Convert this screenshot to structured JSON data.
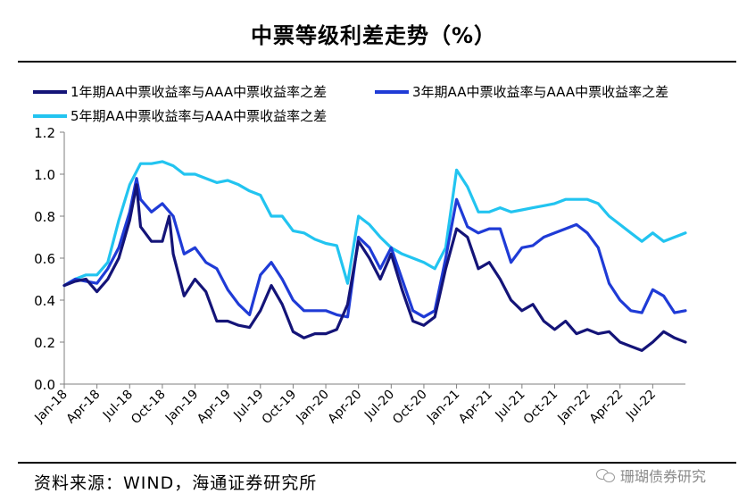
{
  "header": {
    "title": "中票等级利差走势（%）"
  },
  "footer": {
    "source": "资料来源：WIND，海通证券研究所",
    "watermark": "珊瑚债券研究"
  },
  "colors": {
    "s1": "#141478",
    "s2": "#1f3bd6",
    "s3": "#22c4f0",
    "axis": "#7f7f7f"
  },
  "chart_data": {
    "type": "line",
    "title": "中票等级利差走势（%）",
    "xlabel": "",
    "ylabel": "",
    "ylim": [
      0,
      1.2
    ],
    "yticks": [
      "0.0",
      "0.2",
      "0.4",
      "0.6",
      "0.8",
      "1.0",
      "1.2"
    ],
    "xticks": [
      "Jan-18",
      "Apr-18",
      "Jul-18",
      "Oct-18",
      "Jan-19",
      "Apr-19",
      "Jul-19",
      "Oct-19",
      "Jan-20",
      "Apr-20",
      "Jul-20",
      "Oct-20",
      "Jan-21",
      "Apr-21",
      "Jul-21",
      "Oct-21",
      "Jan-22",
      "Apr-22",
      "Jul-22"
    ],
    "x_range": [
      "2018-01",
      "2022-10"
    ],
    "series": [
      {
        "name": "1年期AA中票收益率与AAA中票收益率之差",
        "points": [
          [
            "2018-01",
            0.47
          ],
          [
            "2018-02",
            0.49
          ],
          [
            "2018-03",
            0.5
          ],
          [
            "2018-04",
            0.44
          ],
          [
            "2018-05",
            0.5
          ],
          [
            "2018-06",
            0.6
          ],
          [
            "2018-07",
            0.78
          ],
          [
            "2018-07-20",
            0.95
          ],
          [
            "2018-08",
            0.75
          ],
          [
            "2018-09",
            0.68
          ],
          [
            "2018-10",
            0.68
          ],
          [
            "2018-10-20",
            0.8
          ],
          [
            "2018-11",
            0.62
          ],
          [
            "2018-12",
            0.42
          ],
          [
            "2019-01",
            0.5
          ],
          [
            "2019-02",
            0.44
          ],
          [
            "2019-03",
            0.3
          ],
          [
            "2019-04",
            0.3
          ],
          [
            "2019-05",
            0.28
          ],
          [
            "2019-06",
            0.27
          ],
          [
            "2019-07",
            0.35
          ],
          [
            "2019-08",
            0.47
          ],
          [
            "2019-09",
            0.38
          ],
          [
            "2019-10",
            0.25
          ],
          [
            "2019-11",
            0.22
          ],
          [
            "2019-12",
            0.24
          ],
          [
            "2020-01",
            0.24
          ],
          [
            "2020-02",
            0.26
          ],
          [
            "2020-03",
            0.38
          ],
          [
            "2020-04",
            0.68
          ],
          [
            "2020-05",
            0.6
          ],
          [
            "2020-06",
            0.5
          ],
          [
            "2020-07",
            0.62
          ],
          [
            "2020-08",
            0.45
          ],
          [
            "2020-09",
            0.3
          ],
          [
            "2020-10",
            0.28
          ],
          [
            "2020-11",
            0.32
          ],
          [
            "2020-12",
            0.55
          ],
          [
            "2021-01",
            0.74
          ],
          [
            "2021-02",
            0.7
          ],
          [
            "2021-03",
            0.55
          ],
          [
            "2021-04",
            0.58
          ],
          [
            "2021-05",
            0.5
          ],
          [
            "2021-06",
            0.4
          ],
          [
            "2021-07",
            0.35
          ],
          [
            "2021-08",
            0.38
          ],
          [
            "2021-09",
            0.3
          ],
          [
            "2021-10",
            0.26
          ],
          [
            "2021-11",
            0.3
          ],
          [
            "2021-12",
            0.24
          ],
          [
            "2022-01",
            0.26
          ],
          [
            "2022-02",
            0.24
          ],
          [
            "2022-03",
            0.25
          ],
          [
            "2022-04",
            0.2
          ],
          [
            "2022-05",
            0.18
          ],
          [
            "2022-06",
            0.16
          ],
          [
            "2022-07",
            0.2
          ],
          [
            "2022-08",
            0.25
          ],
          [
            "2022-09",
            0.22
          ],
          [
            "2022-10",
            0.2
          ]
        ]
      },
      {
        "name": "3年期AA中票收益率与AAA中票收益率之差",
        "points": [
          [
            "2018-01",
            0.47
          ],
          [
            "2018-02",
            0.5
          ],
          [
            "2018-03",
            0.49
          ],
          [
            "2018-04",
            0.48
          ],
          [
            "2018-05",
            0.55
          ],
          [
            "2018-06",
            0.65
          ],
          [
            "2018-07",
            0.82
          ],
          [
            "2018-07-20",
            0.98
          ],
          [
            "2018-08",
            0.88
          ],
          [
            "2018-09",
            0.82
          ],
          [
            "2018-10",
            0.86
          ],
          [
            "2018-11",
            0.8
          ],
          [
            "2018-12",
            0.62
          ],
          [
            "2019-01",
            0.65
          ],
          [
            "2019-02",
            0.58
          ],
          [
            "2019-03",
            0.55
          ],
          [
            "2019-04",
            0.45
          ],
          [
            "2019-05",
            0.38
          ],
          [
            "2019-06",
            0.33
          ],
          [
            "2019-07",
            0.52
          ],
          [
            "2019-08",
            0.58
          ],
          [
            "2019-09",
            0.5
          ],
          [
            "2019-10",
            0.4
          ],
          [
            "2019-11",
            0.35
          ],
          [
            "2019-12",
            0.35
          ],
          [
            "2020-01",
            0.35
          ],
          [
            "2020-02",
            0.33
          ],
          [
            "2020-03",
            0.32
          ],
          [
            "2020-04",
            0.7
          ],
          [
            "2020-05",
            0.65
          ],
          [
            "2020-06",
            0.55
          ],
          [
            "2020-07",
            0.65
          ],
          [
            "2020-08",
            0.5
          ],
          [
            "2020-09",
            0.35
          ],
          [
            "2020-10",
            0.32
          ],
          [
            "2020-11",
            0.35
          ],
          [
            "2020-12",
            0.6
          ],
          [
            "2021-01",
            0.88
          ],
          [
            "2021-02",
            0.75
          ],
          [
            "2021-03",
            0.72
          ],
          [
            "2021-04",
            0.74
          ],
          [
            "2021-05",
            0.74
          ],
          [
            "2021-06",
            0.58
          ],
          [
            "2021-07",
            0.65
          ],
          [
            "2021-08",
            0.66
          ],
          [
            "2021-09",
            0.7
          ],
          [
            "2021-10",
            0.72
          ],
          [
            "2021-11",
            0.74
          ],
          [
            "2021-12",
            0.76
          ],
          [
            "2022-01",
            0.72
          ],
          [
            "2022-02",
            0.65
          ],
          [
            "2022-03",
            0.48
          ],
          [
            "2022-04",
            0.4
          ],
          [
            "2022-05",
            0.35
          ],
          [
            "2022-06",
            0.34
          ],
          [
            "2022-07",
            0.45
          ],
          [
            "2022-08",
            0.42
          ],
          [
            "2022-09",
            0.34
          ],
          [
            "2022-10",
            0.35
          ]
        ]
      },
      {
        "name": "5年期AA中票收益率与AAA中票收益率之差",
        "points": [
          [
            "2018-01",
            0.47
          ],
          [
            "2018-02",
            0.5
          ],
          [
            "2018-03",
            0.52
          ],
          [
            "2018-04",
            0.52
          ],
          [
            "2018-05",
            0.58
          ],
          [
            "2018-06",
            0.78
          ],
          [
            "2018-07",
            0.95
          ],
          [
            "2018-08",
            1.05
          ],
          [
            "2018-09",
            1.05
          ],
          [
            "2018-10",
            1.06
          ],
          [
            "2018-11",
            1.04
          ],
          [
            "2018-12",
            1.0
          ],
          [
            "2019-01",
            1.0
          ],
          [
            "2019-02",
            0.98
          ],
          [
            "2019-03",
            0.96
          ],
          [
            "2019-04",
            0.97
          ],
          [
            "2019-05",
            0.95
          ],
          [
            "2019-06",
            0.92
          ],
          [
            "2019-07",
            0.9
          ],
          [
            "2019-08",
            0.8
          ],
          [
            "2019-09",
            0.8
          ],
          [
            "2019-10",
            0.73
          ],
          [
            "2019-11",
            0.72
          ],
          [
            "2019-12",
            0.69
          ],
          [
            "2020-01",
            0.67
          ],
          [
            "2020-02",
            0.66
          ],
          [
            "2020-03",
            0.48
          ],
          [
            "2020-04",
            0.8
          ],
          [
            "2020-05",
            0.76
          ],
          [
            "2020-06",
            0.7
          ],
          [
            "2020-07",
            0.65
          ],
          [
            "2020-08",
            0.62
          ],
          [
            "2020-09",
            0.6
          ],
          [
            "2020-10",
            0.58
          ],
          [
            "2020-11",
            0.55
          ],
          [
            "2020-12",
            0.65
          ],
          [
            "2021-01",
            1.02
          ],
          [
            "2021-02",
            0.94
          ],
          [
            "2021-03",
            0.82
          ],
          [
            "2021-04",
            0.82
          ],
          [
            "2021-05",
            0.84
          ],
          [
            "2021-06",
            0.82
          ],
          [
            "2021-07",
            0.83
          ],
          [
            "2021-08",
            0.84
          ],
          [
            "2021-09",
            0.85
          ],
          [
            "2021-10",
            0.86
          ],
          [
            "2021-11",
            0.88
          ],
          [
            "2021-12",
            0.88
          ],
          [
            "2022-01",
            0.88
          ],
          [
            "2022-02",
            0.86
          ],
          [
            "2022-03",
            0.8
          ],
          [
            "2022-04",
            0.76
          ],
          [
            "2022-05",
            0.72
          ],
          [
            "2022-06",
            0.68
          ],
          [
            "2022-07",
            0.72
          ],
          [
            "2022-08",
            0.68
          ],
          [
            "2022-09",
            0.7
          ],
          [
            "2022-10",
            0.72
          ]
        ]
      }
    ]
  }
}
